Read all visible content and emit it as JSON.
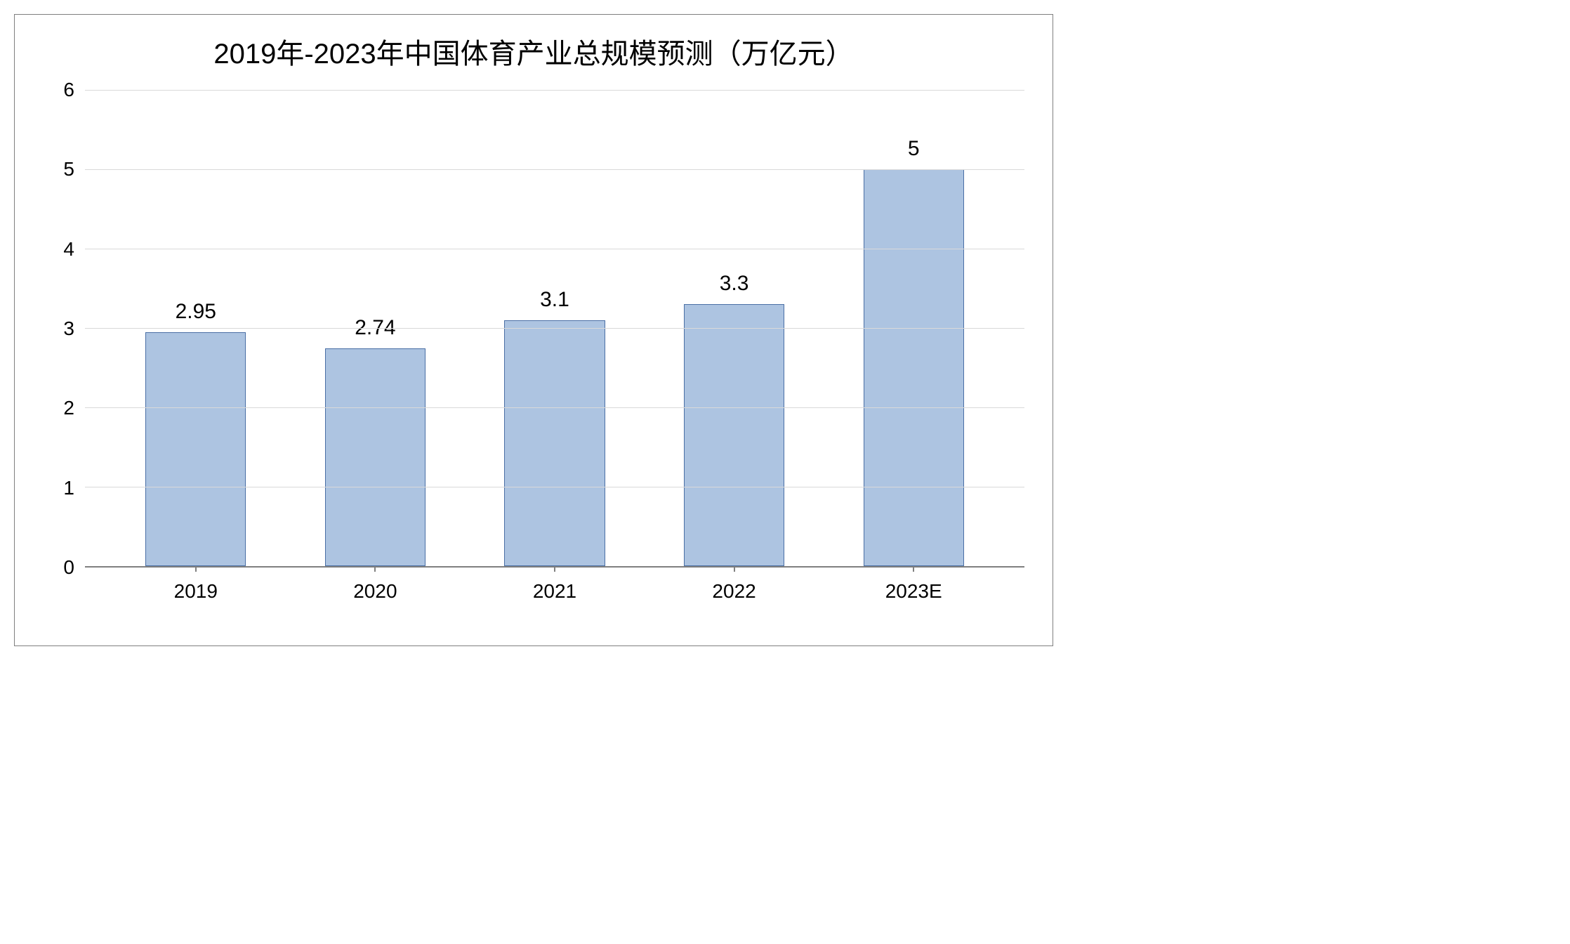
{
  "chart": {
    "type": "bar",
    "title": "2019年-2023年中国体育产业总规模预测（万亿元）",
    "title_fontsize": 40,
    "title_color": "#000000",
    "categories": [
      "2019",
      "2020",
      "2021",
      "2022",
      "2023E"
    ],
    "values": [
      2.95,
      2.74,
      3.1,
      3.3,
      5
    ],
    "value_labels": [
      "2.95",
      "2.74",
      "3.1",
      "3.3",
      "5"
    ],
    "bar_color": "#adc4e1",
    "bar_border_color": "#4a6fa5",
    "bar_width": 0.56,
    "ylim": [
      0,
      6
    ],
    "ytick_step": 1,
    "yticks": [
      0,
      1,
      2,
      3,
      4,
      5,
      6
    ],
    "grid_color": "#d9d9d9",
    "axis_line_color": "#808080",
    "axis_label_fontsize": 28,
    "value_label_fontsize": 30,
    "background_color": "#ffffff",
    "border_color": "#7f7f7f"
  }
}
